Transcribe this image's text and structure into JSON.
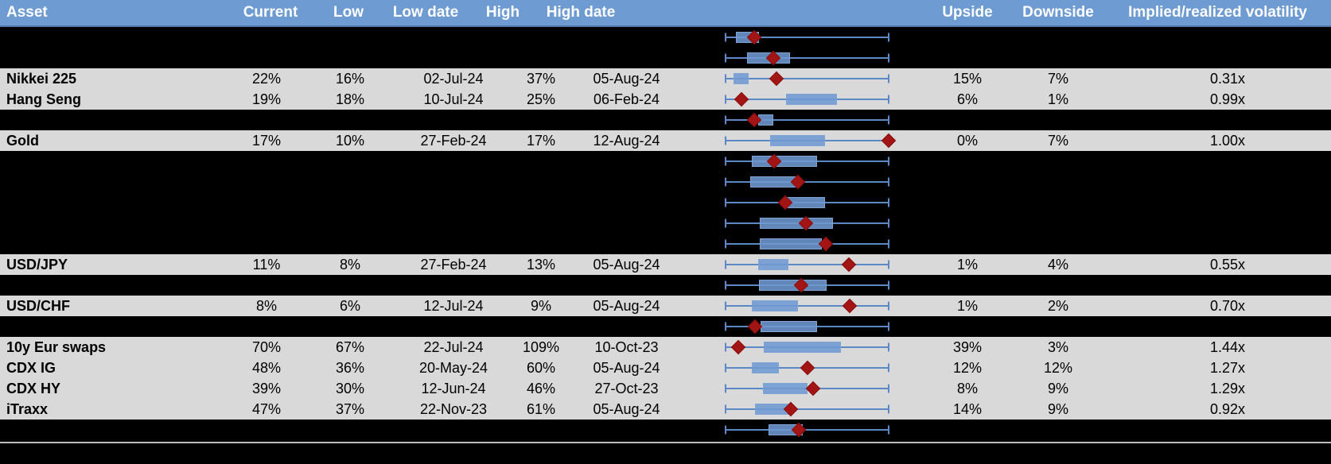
{
  "header": {
    "columns": [
      "Asset",
      "Current",
      "Low",
      "Low date",
      "High",
      "High date",
      "",
      "Upside",
      "Downside",
      "Implied/realized volatility"
    ]
  },
  "colors": {
    "header_bg": "#6d9bd2",
    "header_border": "#5076ad",
    "row_gray": "#d9d9d9",
    "row_black": "#000000",
    "box_fill": "#6e98d0",
    "whisker": "#5c88c6",
    "marker_diamond": "#a31414",
    "separator_line": "#bdbdbd"
  },
  "chart_data": {
    "type": "table",
    "subtype": "table-with-boxplot-column",
    "title": "",
    "columns": [
      "Asset",
      "Current",
      "Low",
      "Low date",
      "High",
      "High date",
      "1y range boxplot",
      "Upside",
      "Downside",
      "Implied/realized volatility"
    ],
    "boxplot_note": "box lo/hi and marker are percent positions along the whisker track (0 = left whisker end, 100 = right whisker end); red diamond marks current level",
    "rows": [
      {
        "asset": "",
        "redacted": true,
        "current": "",
        "low": "",
        "low_date": "",
        "high": "",
        "high_date": "",
        "upside": "",
        "downside": "",
        "implied_realized_vol": "",
        "box": {
          "lo": 6.3,
          "hi": 20.5,
          "marker": 17.6
        }
      },
      {
        "asset": "",
        "redacted": true,
        "current": "",
        "low": "",
        "low_date": "",
        "high": "",
        "high_date": "",
        "upside": "",
        "downside": "",
        "implied_realized_vol": "",
        "box": {
          "lo": 13.2,
          "hi": 39.5,
          "marker": 29.3
        }
      },
      {
        "asset": "Nikkei 225",
        "redacted": false,
        "current": "22%",
        "low": "16%",
        "low_date": "02-Jul-24",
        "high": "37%",
        "high_date": "05-Aug-24",
        "upside": "15%",
        "downside": "7%",
        "implied_realized_vol": "0.31x",
        "box": {
          "lo": 4.9,
          "hi": 14.1,
          "marker": 31.2
        }
      },
      {
        "asset": "Hang Seng",
        "redacted": false,
        "current": "19%",
        "low": "18%",
        "low_date": "10-Jul-24",
        "high": "25%",
        "high_date": "06-Feb-24",
        "upside": "6%",
        "downside": "1%",
        "implied_realized_vol": "0.99x",
        "box": {
          "lo": 37.1,
          "hi": 68.3,
          "marker": 9.8
        }
      },
      {
        "asset": "",
        "redacted": true,
        "current": "",
        "low": "",
        "low_date": "",
        "high": "",
        "high_date": "",
        "upside": "",
        "downside": "",
        "implied_realized_vol": "",
        "box": {
          "lo": 20.0,
          "hi": 29.3,
          "marker": 17.6
        }
      },
      {
        "asset": "Gold",
        "redacted": false,
        "current": "17%",
        "low": "10%",
        "low_date": "27-Feb-24",
        "high": "17%",
        "high_date": "12-Aug-24",
        "upside": "0%",
        "downside": "7%",
        "implied_realized_vol": "1.00x",
        "box": {
          "lo": 27.3,
          "hi": 61.0,
          "marker": 100
        }
      },
      {
        "asset": "",
        "redacted": true,
        "current": "",
        "low": "",
        "low_date": "",
        "high": "",
        "high_date": "",
        "upside": "",
        "downside": "",
        "implied_realized_vol": "",
        "box": {
          "lo": 16.1,
          "hi": 56.1,
          "marker": 29.8
        }
      },
      {
        "asset": "",
        "redacted": true,
        "current": "",
        "low": "",
        "low_date": "",
        "high": "",
        "high_date": "",
        "upside": "",
        "downside": "",
        "implied_realized_vol": "",
        "box": {
          "lo": 15.1,
          "hi": 43.9,
          "marker": 44.4
        }
      },
      {
        "asset": "",
        "redacted": true,
        "current": "",
        "low": "",
        "low_date": "",
        "high": "",
        "high_date": "",
        "upside": "",
        "downside": "",
        "implied_realized_vol": "",
        "box": {
          "lo": 36.6,
          "hi": 61.0,
          "marker": 36.6
        }
      },
      {
        "asset": "",
        "redacted": true,
        "current": "",
        "low": "",
        "low_date": "",
        "high": "",
        "high_date": "",
        "upside": "",
        "downside": "",
        "implied_realized_vol": "",
        "box": {
          "lo": 21.0,
          "hi": 65.9,
          "marker": 49.3
        }
      },
      {
        "asset": "",
        "redacted": true,
        "current": "",
        "low": "",
        "low_date": "",
        "high": "",
        "high_date": "",
        "upside": "",
        "downside": "",
        "implied_realized_vol": "",
        "box": {
          "lo": 21.0,
          "hi": 59.0,
          "marker": 61.5
        }
      },
      {
        "asset": "USD/JPY",
        "redacted": false,
        "current": "11%",
        "low": "8%",
        "low_date": "27-Feb-24",
        "high": "13%",
        "high_date": "05-Aug-24",
        "upside": "1%",
        "downside": "4%",
        "implied_realized_vol": "0.55x",
        "box": {
          "lo": 20.0,
          "hi": 38.5,
          "marker": 75.6
        }
      },
      {
        "asset": "",
        "redacted": true,
        "current": "",
        "low": "",
        "low_date": "",
        "high": "",
        "high_date": "",
        "upside": "",
        "downside": "",
        "implied_realized_vol": "",
        "box": {
          "lo": 20.5,
          "hi": 62.0,
          "marker": 46.3
        }
      },
      {
        "asset": "USD/CHF",
        "redacted": false,
        "current": "8%",
        "low": "6%",
        "low_date": "12-Jul-24",
        "high": "9%",
        "high_date": "05-Aug-24",
        "upside": "1%",
        "downside": "2%",
        "implied_realized_vol": "0.70x",
        "box": {
          "lo": 16.1,
          "hi": 44.4,
          "marker": 76.1
        }
      },
      {
        "asset": "",
        "redacted": true,
        "current": "",
        "low": "",
        "low_date": "",
        "high": "",
        "high_date": "",
        "upside": "",
        "downside": "",
        "implied_realized_vol": "",
        "box": {
          "lo": 21.5,
          "hi": 56.1,
          "marker": 18.0
        }
      },
      {
        "asset": "10y Eur swaps",
        "redacted": false,
        "current": "70%",
        "low": "67%",
        "low_date": "22-Jul-24",
        "high": "109%",
        "high_date": "10-Oct-23",
        "upside": "39%",
        "downside": "3%",
        "implied_realized_vol": "1.44x",
        "box": {
          "lo": 23.4,
          "hi": 70.7,
          "marker": 7.8
        }
      },
      {
        "asset": "CDX IG",
        "redacted": false,
        "current": "48%",
        "low": "36%",
        "low_date": "20-May-24",
        "high": "60%",
        "high_date": "05-Aug-24",
        "upside": "12%",
        "downside": "12%",
        "implied_realized_vol": "1.27x",
        "box": {
          "lo": 16.1,
          "hi": 32.7,
          "marker": 50.2
        }
      },
      {
        "asset": "CDX HY",
        "redacted": false,
        "current": "39%",
        "low": "30%",
        "low_date": "12-Jun-24",
        "high": "46%",
        "high_date": "27-Oct-23",
        "upside": "8%",
        "downside": "9%",
        "implied_realized_vol": "1.29x",
        "box": {
          "lo": 22.9,
          "hi": 50.2,
          "marker": 53.7
        }
      },
      {
        "asset": "iTraxx",
        "redacted": false,
        "current": "47%",
        "low": "37%",
        "low_date": "22-Nov-23",
        "high": "61%",
        "high_date": "05-Aug-24",
        "upside": "14%",
        "downside": "9%",
        "implied_realized_vol": "0.92x",
        "box": {
          "lo": 18.0,
          "hi": 39.5,
          "marker": 40.0
        }
      },
      {
        "asset": "",
        "redacted": true,
        "current": "",
        "low": "",
        "low_date": "",
        "high": "",
        "high_date": "",
        "upside": "",
        "downside": "",
        "implied_realized_vol": "",
        "box": {
          "lo": 26.3,
          "hi": 47.3,
          "marker": 44.9
        }
      }
    ]
  }
}
